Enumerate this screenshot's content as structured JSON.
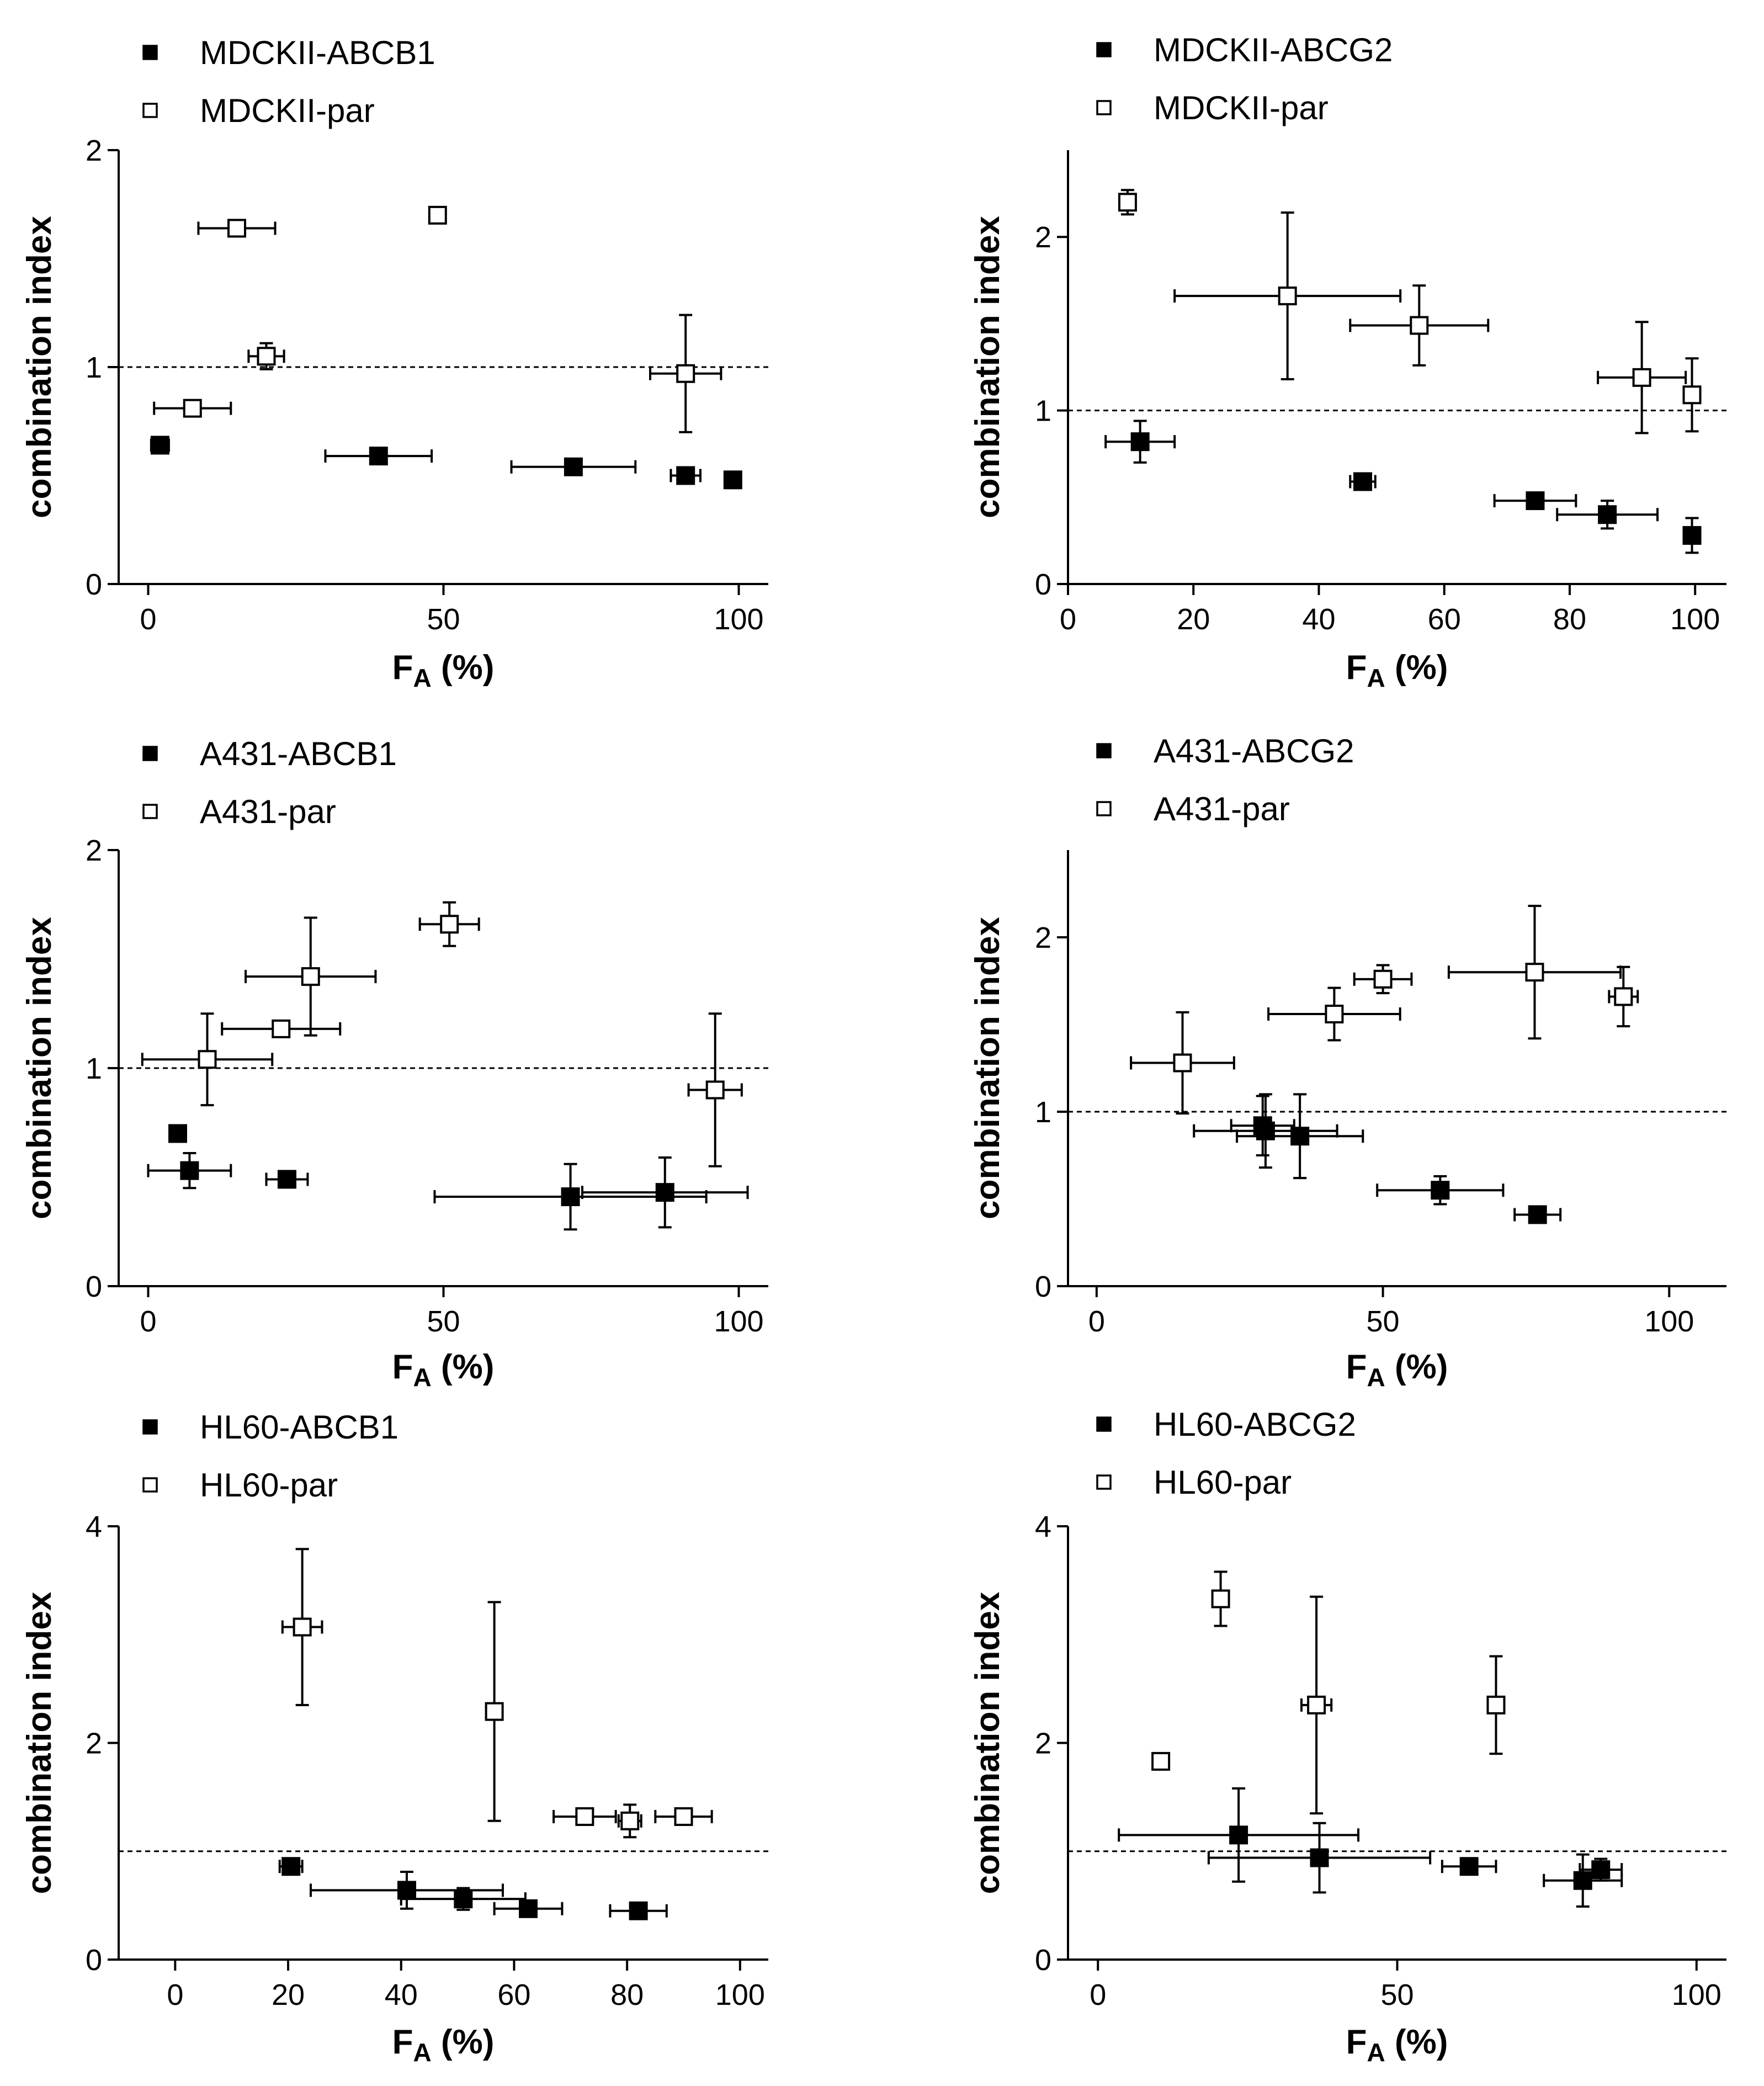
{
  "chart_data": [
    {
      "type": "scatter",
      "legend": [
        "MDCKII-ABCB1",
        "MDCKII-par"
      ],
      "xlabel": "F",
      "xlabel_sub": "A",
      "xlabel_unit": "(%)",
      "ylabel": "combination index",
      "xlim": [
        -5,
        105
      ],
      "ylim": [
        0,
        2
      ],
      "xticks": [
        0,
        50,
        100
      ],
      "yticks": [
        0,
        1,
        2
      ],
      "reference_y": 1,
      "series": [
        {
          "name": "MDCKII-ABCB1",
          "filled": true,
          "points": [
            {
              "x": 2,
              "y": 0.64,
              "xerr": 1.5,
              "yerr": 0.02
            },
            {
              "x": 39,
              "y": 0.59,
              "xerr": 9,
              "yerr": 0.02
            },
            {
              "x": 72,
              "y": 0.54,
              "xerr": 10.5,
              "yerr": 0.02
            },
            {
              "x": 91,
              "y": 0.5,
              "xerr": 2.5,
              "yerr": 0.02
            },
            {
              "x": 99,
              "y": 0.48,
              "xerr": 1,
              "yerr": 0.02
            }
          ]
        },
        {
          "name": "MDCKII-par",
          "filled": false,
          "points": [
            {
              "x": 15,
              "y": 1.64,
              "xerr": 6.5,
              "yerr": 0.02
            },
            {
              "x": 49,
              "y": 1.7,
              "xerr": 1,
              "yerr": 0.02
            },
            {
              "x": 20,
              "y": 1.05,
              "xerr": 3,
              "yerr": 0.06
            },
            {
              "x": 7.5,
              "y": 0.81,
              "xerr": 6.5,
              "yerr": 0.03
            },
            {
              "x": 91,
              "y": 0.97,
              "xerr": 6,
              "yerr": 0.27
            }
          ]
        }
      ]
    },
    {
      "type": "scatter",
      "legend": [
        "MDCKII-ABCG2",
        "MDCKII-par"
      ],
      "xlabel": "F",
      "xlabel_sub": "A",
      "xlabel_unit": "(%)",
      "ylabel": "combination index",
      "xlim": [
        0,
        105
      ],
      "ylim": [
        0,
        2.5
      ],
      "xticks": [
        0,
        20,
        40,
        60,
        80,
        100
      ],
      "yticks": [
        0,
        1,
        2
      ],
      "reference_y": 1,
      "series": [
        {
          "name": "MDCKII-ABCG2",
          "filled": true,
          "points": [
            {
              "x": 11.5,
              "y": 0.82,
              "xerr": 5.5,
              "yerr": 0.12
            },
            {
              "x": 47,
              "y": 0.59,
              "xerr": 2,
              "yerr": 0.03
            },
            {
              "x": 74.5,
              "y": 0.48,
              "xerr": 6.5,
              "yerr": 0.03
            },
            {
              "x": 86,
              "y": 0.4,
              "xerr": 8,
              "yerr": 0.08
            },
            {
              "x": 99.5,
              "y": 0.28,
              "xerr": 0.5,
              "yerr": 0.1
            }
          ]
        },
        {
          "name": "MDCKII-par",
          "filled": false,
          "points": [
            {
              "x": 9.5,
              "y": 2.2,
              "xerr": 1,
              "yerr": 0.07
            },
            {
              "x": 35,
              "y": 1.66,
              "xerr": 18,
              "yerr": 0.48
            },
            {
              "x": 56,
              "y": 1.49,
              "xerr": 11,
              "yerr": 0.23
            },
            {
              "x": 91.5,
              "y": 1.19,
              "xerr": 7,
              "yerr": 0.32
            },
            {
              "x": 99.5,
              "y": 1.09,
              "xerr": 1,
              "yerr": 0.21
            }
          ]
        }
      ]
    },
    {
      "type": "scatter",
      "legend": [
        "A431-ABCB1",
        "A431-par"
      ],
      "xlabel": "F",
      "xlabel_sub": "A",
      "xlabel_unit": "(%)",
      "ylabel": "combination index",
      "xlim": [
        -5,
        105
      ],
      "ylim": [
        0,
        2
      ],
      "xticks": [
        0,
        50,
        100
      ],
      "yticks": [
        0,
        1,
        2
      ],
      "reference_y": 1,
      "series": [
        {
          "name": "A431-ABCB1",
          "filled": true,
          "points": [
            {
              "x": 5,
              "y": 0.7,
              "xerr": 1,
              "yerr": 0.02
            },
            {
              "x": 7,
              "y": 0.53,
              "xerr": 7,
              "yerr": 0.08
            },
            {
              "x": 23.5,
              "y": 0.49,
              "xerr": 3.5,
              "yerr": 0.02
            },
            {
              "x": 71.5,
              "y": 0.41,
              "xerr": 23,
              "yerr": 0.15
            },
            {
              "x": 87.5,
              "y": 0.43,
              "xerr": 14,
              "yerr": 0.16
            }
          ]
        },
        {
          "name": "A431-par",
          "filled": false,
          "points": [
            {
              "x": 10,
              "y": 1.04,
              "xerr": 11,
              "yerr": 0.21
            },
            {
              "x": 22.5,
              "y": 1.18,
              "xerr": 10,
              "yerr": 0.03
            },
            {
              "x": 27.5,
              "y": 1.42,
              "xerr": 11,
              "yerr": 0.27
            },
            {
              "x": 51,
              "y": 1.66,
              "xerr": 5,
              "yerr": 0.1
            },
            {
              "x": 96,
              "y": 0.9,
              "xerr": 4.5,
              "yerr": 0.35
            }
          ]
        }
      ]
    },
    {
      "type": "scatter",
      "legend": [
        "A431-ABCG2",
        "A431-par"
      ],
      "xlabel": "F",
      "xlabel_sub": "A",
      "xlabel_unit": "(%)",
      "ylabel": "combination index",
      "xlim": [
        -5,
        110
      ],
      "ylim": [
        0,
        2.5
      ],
      "xticks": [
        0,
        50,
        100
      ],
      "yticks": [
        0,
        1,
        2
      ],
      "reference_y": 1,
      "series": [
        {
          "name": "A431-ABCG2",
          "filled": true,
          "points": [
            {
              "x": 29,
              "y": 0.92,
              "xerr": 5.5,
              "yerr": 0.17
            },
            {
              "x": 29.5,
              "y": 0.89,
              "xerr": 12.5,
              "yerr": 0.21
            },
            {
              "x": 35.5,
              "y": 0.86,
              "xerr": 11,
              "yerr": 0.24
            },
            {
              "x": 60,
              "y": 0.55,
              "xerr": 11,
              "yerr": 0.08
            },
            {
              "x": 77,
              "y": 0.41,
              "xerr": 4,
              "yerr": 0.02
            }
          ]
        },
        {
          "name": "A431-par",
          "filled": false,
          "points": [
            {
              "x": 15,
              "y": 1.28,
              "xerr": 9,
              "yerr": 0.29
            },
            {
              "x": 41.5,
              "y": 1.56,
              "xerr": 11.5,
              "yerr": 0.15
            },
            {
              "x": 50,
              "y": 1.76,
              "xerr": 5,
              "yerr": 0.08
            },
            {
              "x": 76.5,
              "y": 1.8,
              "xerr": 15,
              "yerr": 0.38
            },
            {
              "x": 92,
              "y": 1.66,
              "xerr": 2.5,
              "yerr": 0.17
            }
          ]
        }
      ]
    },
    {
      "type": "scatter",
      "legend": [
        "HL60-ABCB1",
        "HL60-par"
      ],
      "xlabel": "F",
      "xlabel_sub": "A",
      "xlabel_unit": "(%)",
      "ylabel": "combination index",
      "xlim": [
        -10,
        105
      ],
      "ylim": [
        0,
        4
      ],
      "xticks": [
        0,
        20,
        40,
        60,
        80,
        100
      ],
      "yticks": [
        0,
        2,
        4
      ],
      "reference_y": 1,
      "series": [
        {
          "name": "HL60-ABCB1",
          "filled": true,
          "points": [
            {
              "x": 20.5,
              "y": 0.86,
              "xerr": 2,
              "yerr": 0.04
            },
            {
              "x": 41,
              "y": 0.64,
              "xerr": 17,
              "yerr": 0.17
            },
            {
              "x": 51,
              "y": 0.56,
              "xerr": 11,
              "yerr": 0.1
            },
            {
              "x": 62.5,
              "y": 0.47,
              "xerr": 6,
              "yerr": 0.04
            },
            {
              "x": 82,
              "y": 0.45,
              "xerr": 5,
              "yerr": 0.04
            }
          ]
        },
        {
          "name": "HL60-par",
          "filled": false,
          "points": [
            {
              "x": 22.5,
              "y": 3.07,
              "xerr": 3.5,
              "yerr": 0.72
            },
            {
              "x": 56.5,
              "y": 2.29,
              "xerr": 0.5,
              "yerr": 1.01
            },
            {
              "x": 72.5,
              "y": 1.32,
              "xerr": 5.5,
              "yerr": 0.02
            },
            {
              "x": 80.5,
              "y": 1.28,
              "xerr": 2,
              "yerr": 0.15
            },
            {
              "x": 90,
              "y": 1.32,
              "xerr": 5,
              "yerr": 0.02
            }
          ]
        }
      ]
    },
    {
      "type": "scatter",
      "legend": [
        "HL60-ABCG2",
        "HL60-par"
      ],
      "xlabel": "F",
      "xlabel_sub": "A",
      "xlabel_unit": "(%)",
      "ylabel": "combination index",
      "xlim": [
        -5,
        105
      ],
      "ylim": [
        0,
        4
      ],
      "xticks": [
        0,
        50,
        100
      ],
      "yticks": [
        0,
        2,
        4
      ],
      "reference_y": 1,
      "series": [
        {
          "name": "HL60-ABCG2",
          "filled": true,
          "points": [
            {
              "x": 23.5,
              "y": 1.15,
              "xerr": 20,
              "yerr": 0.43
            },
            {
              "x": 37,
              "y": 0.94,
              "xerr": 18.5,
              "yerr": 0.32
            },
            {
              "x": 62,
              "y": 0.86,
              "xerr": 4.5,
              "yerr": 0.06
            },
            {
              "x": 81,
              "y": 0.73,
              "xerr": 6.5,
              "yerr": 0.24
            },
            {
              "x": 84,
              "y": 0.83,
              "xerr": 3.5,
              "yerr": 0.1
            }
          ]
        },
        {
          "name": "HL60-par",
          "filled": false,
          "points": [
            {
              "x": 10.5,
              "y": 1.83,
              "xerr": 1,
              "yerr": 0.04
            },
            {
              "x": 20.5,
              "y": 3.33,
              "xerr": 1.2,
              "yerr": 0.25
            },
            {
              "x": 36.5,
              "y": 2.35,
              "xerr": 2.5,
              "yerr": 1.0
            },
            {
              "x": 66.5,
              "y": 2.35,
              "xerr": 1,
              "yerr": 0.45
            }
          ]
        }
      ]
    }
  ]
}
